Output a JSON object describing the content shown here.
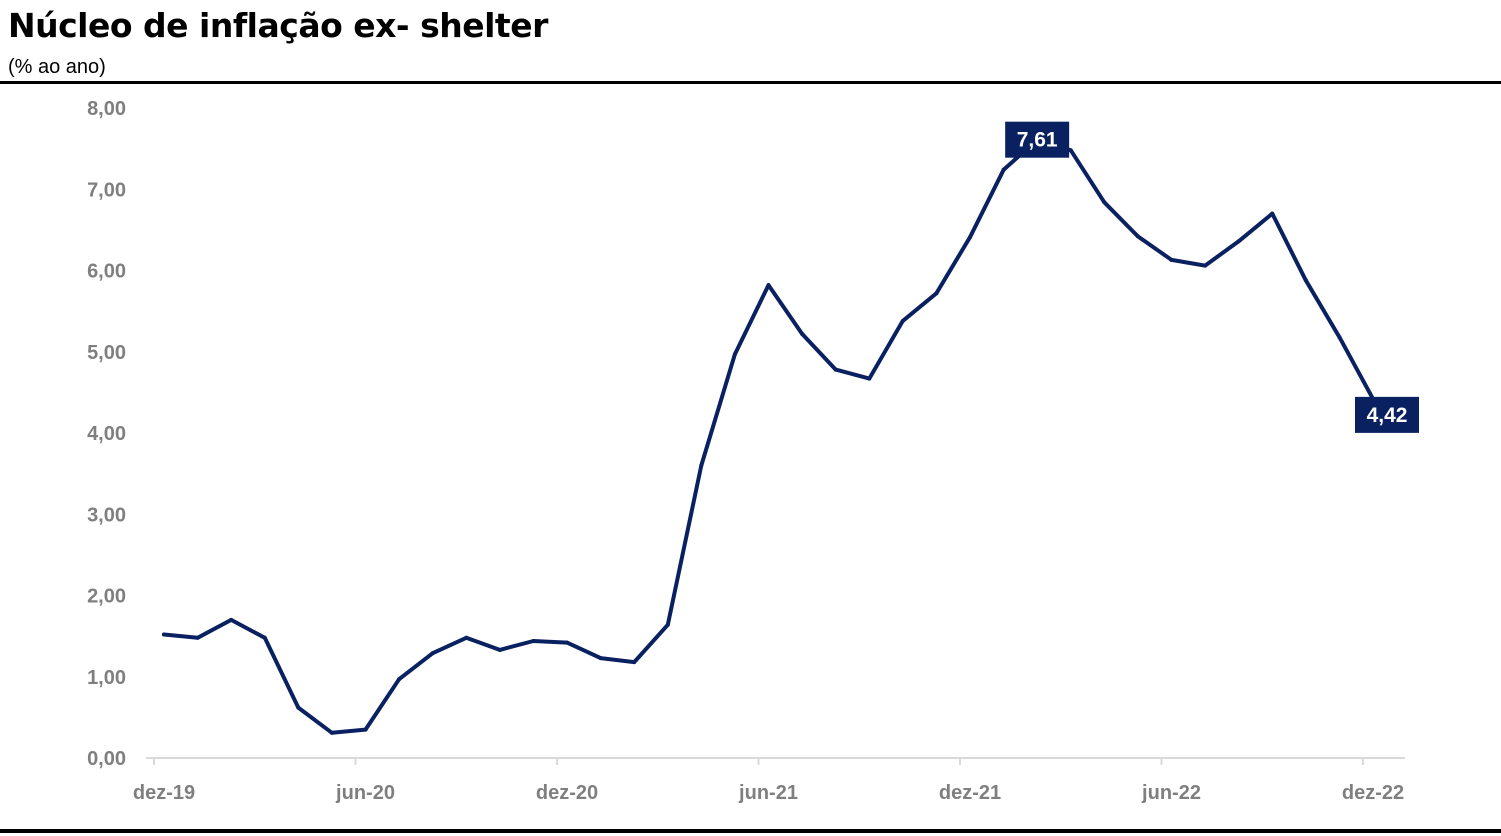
{
  "header": {
    "title": "Núcleo de inflação ex- shelter",
    "subtitle": "(% ao ano)"
  },
  "colors": {
    "series": "#0a2161",
    "label_bg": "#0a2161",
    "label_text": "#ffffff",
    "tick_text": "#7f7f7f",
    "axis": "#d9d9d9",
    "rule": "#000000"
  },
  "chart_data": {
    "type": "line",
    "title": "Núcleo de inflação ex- shelter",
    "subtitle": "(% ao ano)",
    "xlabel": "",
    "ylabel": "",
    "ylim": [
      0,
      8
    ],
    "yticks": [
      "0,00",
      "1,00",
      "2,00",
      "3,00",
      "4,00",
      "5,00",
      "6,00",
      "7,00",
      "8,00"
    ],
    "x_tick_labels": [
      {
        "label": "dez-19",
        "index": 0
      },
      {
        "label": "jun-20",
        "index": 6
      },
      {
        "label": "dez-20",
        "index": 12
      },
      {
        "label": "jun-21",
        "index": 18
      },
      {
        "label": "dez-21",
        "index": 24
      },
      {
        "label": "jun-22",
        "index": 30
      },
      {
        "label": "dez-22",
        "index": 36
      }
    ],
    "grid": false,
    "legend": "none",
    "x": [
      "dez-19",
      "jan-20",
      "fev-20",
      "mar-20",
      "abr-20",
      "mai-20",
      "jun-20",
      "jul-20",
      "ago-20",
      "set-20",
      "out-20",
      "nov-20",
      "dez-20",
      "jan-21",
      "fev-21",
      "mar-21",
      "abr-21",
      "mai-21",
      "jun-21",
      "jul-21",
      "ago-21",
      "set-21",
      "out-21",
      "nov-21",
      "dez-21",
      "jan-22",
      "fev-22",
      "mar-22",
      "abr-22",
      "mai-22",
      "jun-22",
      "jul-22",
      "ago-22",
      "set-22",
      "out-22",
      "nov-22",
      "dez-22"
    ],
    "series": [
      {
        "values": [
          1.52,
          1.48,
          1.7,
          1.48,
          0.62,
          0.31,
          0.35,
          0.97,
          1.29,
          1.48,
          1.33,
          1.44,
          1.42,
          1.23,
          1.18,
          1.64,
          3.6,
          4.97,
          5.82,
          5.22,
          4.78,
          4.67,
          5.38,
          5.72,
          6.41,
          7.24,
          7.61,
          7.48,
          6.84,
          6.42,
          6.13,
          6.06,
          6.36,
          6.7,
          5.88,
          5.18,
          4.42
        ]
      }
    ],
    "data_labels": [
      {
        "index": 26,
        "text": "7,61"
      },
      {
        "index": 36,
        "text": "4,42"
      }
    ]
  }
}
